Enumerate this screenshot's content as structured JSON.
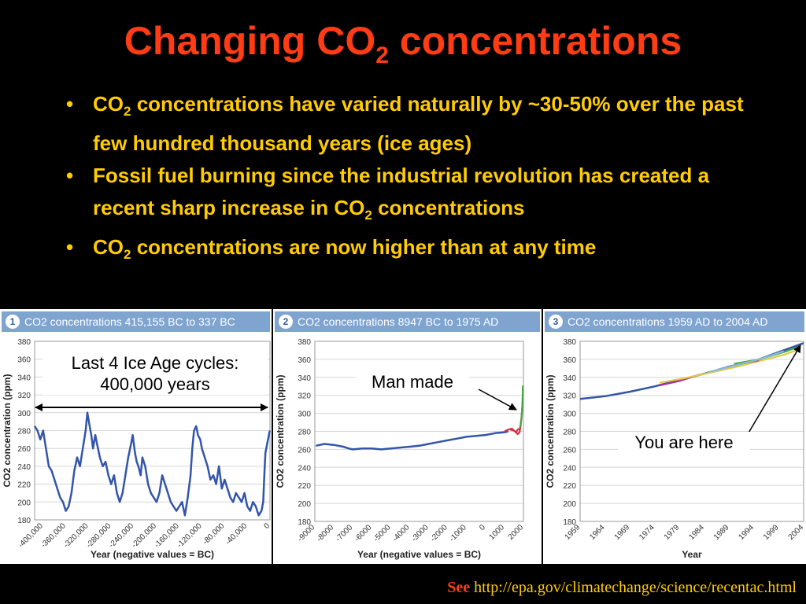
{
  "slide": {
    "title_main": "Changing CO",
    "title_sub": "2",
    "title_end": " concentrations",
    "bullets": [
      {
        "a": "CO",
        "sub": "2",
        "b": " concentrations have varied naturally by ~30-50% over the past few hundred thousand years (ice ages)"
      },
      {
        "a": "Fossil fuel burning since the industrial revolution has created a recent sharp increase in CO",
        "sub": "2",
        "b": " concentrations"
      },
      {
        "a": "CO",
        "sub": "2",
        "b": " concentrations are now higher than at any time"
      }
    ],
    "callouts": {
      "ice_age": "Last 4 Ice Age cycles: 400,000 years",
      "man_made": "Man made",
      "you_are_here": "You are here"
    },
    "footer": {
      "see": "See",
      "url": "http://epa.gov/climatechange/science/recentac.html"
    }
  },
  "colors": {
    "title": "#ff3c14",
    "bullets": "#ffcc00",
    "line": "#3355aa",
    "panel_header": "#7fa4d0"
  },
  "chart_data": [
    {
      "type": "line",
      "panel_number": "1",
      "title": "CO2 concentrations 415,155 BC to 337 BC",
      "xlabel": "Year (negative values = BC)",
      "ylabel": "CO2 concentration (ppm)",
      "ylim": [
        180,
        380
      ],
      "yticks": [
        180,
        200,
        220,
        240,
        260,
        280,
        300,
        320,
        340,
        360,
        380
      ],
      "xlim": [
        -415000,
        0
      ],
      "xticks": [
        -400000,
        -360000,
        -320000,
        -280000,
        -240000,
        -200000,
        -160000,
        -120000,
        -80000,
        -40000,
        0
      ],
      "xtick_labels": [
        "-400,000",
        "-360,000",
        "-320,000",
        "-280,000",
        "-240,000",
        "-200,000",
        "-160,000",
        "-120,000",
        "-80,000",
        "-40,000",
        "0"
      ],
      "series": [
        {
          "color": "#3355aa",
          "x": [
            -415000,
            -410000,
            -405000,
            -400000,
            -395000,
            -390000,
            -385000,
            -380000,
            -375000,
            -370000,
            -365000,
            -360000,
            -355000,
            -350000,
            -345000,
            -340000,
            -335000,
            -330000,
            -325000,
            -322000,
            -318000,
            -315000,
            -312000,
            -308000,
            -305000,
            -300000,
            -295000,
            -290000,
            -285000,
            -280000,
            -275000,
            -270000,
            -265000,
            -260000,
            -255000,
            -250000,
            -245000,
            -242000,
            -238000,
            -235000,
            -232000,
            -228000,
            -225000,
            -220000,
            -215000,
            -210000,
            -205000,
            -200000,
            -195000,
            -190000,
            -185000,
            -180000,
            -175000,
            -170000,
            -165000,
            -160000,
            -155000,
            -150000,
            -145000,
            -140000,
            -137000,
            -134000,
            -130000,
            -127000,
            -123000,
            -120000,
            -115000,
            -110000,
            -105000,
            -100000,
            -95000,
            -90000,
            -85000,
            -80000,
            -75000,
            -70000,
            -65000,
            -60000,
            -55000,
            -50000,
            -45000,
            -40000,
            -35000,
            -30000,
            -25000,
            -20000,
            -15000,
            -12000,
            -10000,
            -8000,
            -5000,
            -2000,
            -337
          ],
          "y": [
            285,
            280,
            270,
            280,
            260,
            240,
            235,
            225,
            215,
            205,
            200,
            190,
            195,
            210,
            235,
            250,
            240,
            260,
            280,
            300,
            285,
            275,
            260,
            275,
            265,
            250,
            240,
            245,
            230,
            220,
            230,
            210,
            200,
            210,
            230,
            250,
            265,
            275,
            255,
            245,
            240,
            230,
            250,
            240,
            220,
            210,
            205,
            200,
            210,
            230,
            220,
            210,
            200,
            195,
            190,
            195,
            200,
            185,
            205,
            230,
            260,
            280,
            285,
            275,
            270,
            260,
            250,
            240,
            225,
            230,
            220,
            240,
            215,
            225,
            215,
            205,
            200,
            210,
            205,
            200,
            210,
            195,
            190,
            200,
            195,
            185,
            190,
            200,
            230,
            255,
            265,
            275,
            280
          ]
        }
      ]
    },
    {
      "type": "line",
      "panel_number": "2",
      "title": "CO2 concentrations 8947 BC to 1975 AD",
      "xlabel": "Year (negative values = BC)",
      "ylabel": "CO2 concentration (ppm)",
      "ylim": [
        180,
        380
      ],
      "yticks": [
        180,
        200,
        220,
        240,
        260,
        280,
        300,
        320,
        340,
        360,
        380
      ],
      "xlim": [
        -9000,
        2000
      ],
      "xticks": [
        -9000,
        -8000,
        -7000,
        -6000,
        -5000,
        -4000,
        -3000,
        -2000,
        -1000,
        0,
        1000,
        2000
      ],
      "xtick_labels": [
        "-9000",
        "-8000",
        "-7000",
        "-6000",
        "-5000",
        "-4000",
        "-3000",
        "-2000",
        "-1000",
        "0",
        "1000",
        "2000"
      ],
      "series": [
        {
          "color": "#3355aa",
          "x": [
            -8947,
            -8500,
            -8000,
            -7500,
            -7200,
            -7000,
            -6500,
            -6000,
            -5500,
            -5000,
            -4500,
            -4000,
            -3500,
            -3000,
            -2500,
            -2000,
            -1500,
            -1000,
            -500,
            0,
            500,
            1000,
            1200
          ],
          "y": [
            264,
            266,
            265,
            263,
            261,
            260,
            261,
            261,
            260,
            261,
            262,
            263,
            264,
            266,
            268,
            270,
            272,
            274,
            275,
            276,
            278,
            279,
            280
          ]
        },
        {
          "color": "#cc3344",
          "x": [
            1000,
            1200,
            1400,
            1500,
            1600,
            1700,
            1800
          ],
          "y": [
            280,
            282,
            283,
            281,
            279,
            282,
            283
          ]
        },
        {
          "color": "#cc3344",
          "x": [
            1300,
            1500,
            1700,
            1800,
            1900,
            1950,
            1975
          ],
          "y": [
            282,
            281,
            277,
            279,
            296,
            310,
            330
          ]
        },
        {
          "color": "#44aa44",
          "x": [
            1850,
            1900,
            1950,
            1975
          ],
          "y": [
            285,
            296,
            311,
            331
          ]
        }
      ]
    },
    {
      "type": "line",
      "panel_number": "3",
      "title": "CO2 concentrations 1959 AD to 2004 AD",
      "xlabel": "Year",
      "ylabel": "CO2 concentration (ppm)",
      "ylim": [
        180,
        380
      ],
      "yticks": [
        180,
        200,
        220,
        240,
        260,
        280,
        300,
        320,
        340,
        360,
        380
      ],
      "xlim": [
        1959,
        2004
      ],
      "xticks": [
        1959,
        1964,
        1969,
        1974,
        1979,
        1984,
        1989,
        1994,
        1999,
        2004
      ],
      "xtick_labels": [
        "1959",
        "1964",
        "1969",
        "1974",
        "1979",
        "1984",
        "1989",
        "1994",
        "1999",
        "2004"
      ],
      "series": [
        {
          "color": "#3355aa",
          "x": [
            1959,
            1964,
            1969,
            1974,
            1979,
            1984,
            1989,
            1994,
            1999,
            2004
          ],
          "y": [
            316,
            319,
            324,
            330,
            337,
            344,
            352,
            358,
            368,
            378
          ]
        },
        {
          "color": "#aa3399",
          "x": [
            1975,
            1979,
            1983
          ],
          "y": [
            331,
            336,
            343
          ]
        },
        {
          "color": "#ddcc44",
          "x": [
            1975,
            1980,
            1985,
            1990,
            1995,
            2000,
            2003
          ],
          "y": [
            334,
            339,
            345,
            351,
            358,
            365,
            371
          ]
        },
        {
          "color": "#44aa44",
          "x": [
            1990,
            1995,
            2000,
            2003
          ],
          "y": [
            355,
            360,
            368,
            374
          ]
        },
        {
          "color": "#cc3344",
          "x": [
            1992,
            1995
          ],
          "y": [
            356,
            359
          ]
        },
        {
          "color": "#88bbdd",
          "x": [
            1985,
            1990,
            1995,
            2000
          ],
          "y": [
            346,
            353,
            360,
            369
          ]
        }
      ]
    }
  ]
}
